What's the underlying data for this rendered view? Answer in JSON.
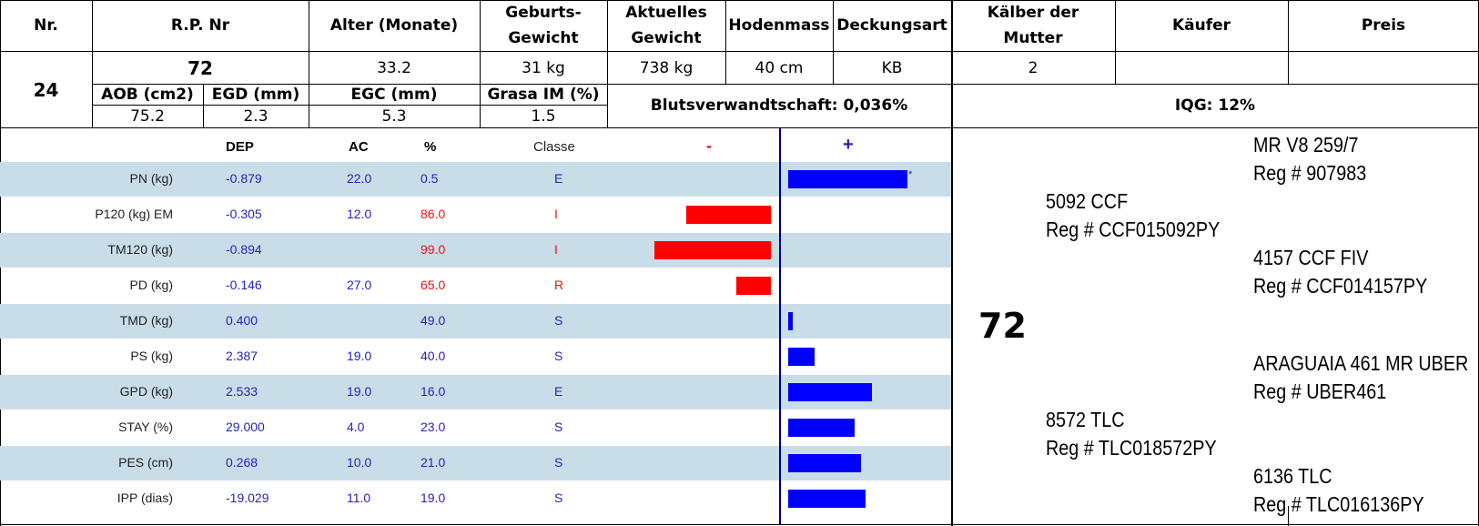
{
  "header": {
    "nr": "Nr.",
    "rp_nr": "R.P. Nr",
    "alter": "Alter (Monate)",
    "geburts_1": "Geburts-",
    "geburts_2": "Gewicht",
    "aktuelles_1": "Aktuelles",
    "aktuelles_2": "Gewicht",
    "hodenmass": "Hodenmass",
    "deckungsart": "Deckungsart",
    "kaelber_1": "Kälber der",
    "kaelber_2": "Mutter",
    "kaeufer": "Käufer",
    "preis": "Preis"
  },
  "animal": {
    "nr": "24",
    "rp_nr": "72",
    "alter": "33.2",
    "geburtsgewicht": "31 kg",
    "aktuelles_gewicht": "738 kg",
    "hodenmass": "40 cm",
    "deckungsart": "KB",
    "kaelber": "2",
    "kaeufer": "",
    "preis": ""
  },
  "carcass": {
    "labels": [
      "AOB (cm2)",
      "EGD (mm)",
      "EGC (mm)",
      "Grasa IM (%)"
    ],
    "values": [
      "75.2",
      "2.3",
      "5.3",
      "1.5"
    ],
    "blutsverwandtschaft": "Blutsverwandtschaft: 0,036%",
    "iqg": "IQG: 12%"
  },
  "ep_table": {
    "headers": {
      "dep": "DEP",
      "ac": "AC",
      "pct": "%",
      "classe": "Classe",
      "minus": "-",
      "plus": "+"
    },
    "rows": [
      {
        "name": "PN (kg)",
        "dep": "-0.879",
        "ac": "22.0",
        "pct": "0.5",
        "classe": "E",
        "pct_red": false,
        "classe_red": false,
        "bar": 1.0,
        "dir": "plus",
        "star": "*"
      },
      {
        "name": "P120 (kg) EM",
        "dep": "-0.305",
        "ac": "12.0",
        "pct": "86.0",
        "classe": "I",
        "pct_red": true,
        "classe_red": true,
        "bar": 0.73,
        "dir": "minus",
        "star": ""
      },
      {
        "name": "TM120 (kg)",
        "dep": "-0.894",
        "ac": "",
        "pct": "99.0",
        "classe": "I",
        "pct_red": true,
        "classe_red": true,
        "bar": 1.0,
        "dir": "minus",
        "star": ""
      },
      {
        "name": "PD (kg)",
        "dep": "-0.146",
        "ac": "27.0",
        "pct": "65.0",
        "classe": "R",
        "pct_red": true,
        "classe_red": true,
        "bar": 0.3,
        "dir": "minus",
        "star": ""
      },
      {
        "name": "TMD (kg)",
        "dep": "0.400",
        "ac": "",
        "pct": "49.0",
        "classe": "S",
        "pct_red": false,
        "classe_red": false,
        "bar": 0.04,
        "dir": "plus",
        "star": ""
      },
      {
        "name": "PS (kg)",
        "dep": "2.387",
        "ac": "19.0",
        "pct": "40.0",
        "classe": "S",
        "pct_red": false,
        "classe_red": false,
        "bar": 0.22,
        "dir": "plus",
        "star": ""
      },
      {
        "name": "GPD (kg)",
        "dep": "2.533",
        "ac": "19.0",
        "pct": "16.0",
        "classe": "E",
        "pct_red": false,
        "classe_red": false,
        "bar": 0.7,
        "dir": "plus",
        "star": ""
      },
      {
        "name": "STAY (%)",
        "dep": "29.000",
        "ac": "4.0",
        "pct": "23.0",
        "classe": "S",
        "pct_red": false,
        "classe_red": false,
        "bar": 0.56,
        "dir": "plus",
        "star": ""
      },
      {
        "name": "PES (cm)",
        "dep": "0.268",
        "ac": "10.0",
        "pct": "21.0",
        "classe": "S",
        "pct_red": false,
        "classe_red": false,
        "bar": 0.61,
        "dir": "plus",
        "star": ""
      },
      {
        "name": "IPP (dias)",
        "dep": "-19.029",
        "ac": "11.0",
        "pct": "19.0",
        "classe": "S",
        "pct_red": false,
        "classe_red": false,
        "bar": 0.65,
        "dir": "plus",
        "star": ""
      }
    ]
  },
  "pedigree": {
    "animal": "72",
    "sire": {
      "name": "5092 CCF",
      "reg": "Reg # CCF015092PY"
    },
    "sire_sire": {
      "name": "MR V8 259/7",
      "reg": "Reg # 907983"
    },
    "sire_dam": {
      "name": "4157 CCF FIV",
      "reg": "Reg # CCF014157PY"
    },
    "dam": {
      "name": "8572 TLC",
      "reg": "Reg # TLC018572PY"
    },
    "dam_sire": {
      "name": "ARAGUAIA 461 MR UBER",
      "reg": "Reg # UBER461"
    },
    "dam_dam": {
      "name": "6136 TLC",
      "reg": "Reg # TLC016136PY"
    }
  },
  "colors": {
    "stripe": "#c9dde9",
    "blue_bar": "#0000ff",
    "red_bar": "#ff0000",
    "blue_text": "#2424b8",
    "red_text": "#e11111",
    "axis": "#000080"
  }
}
